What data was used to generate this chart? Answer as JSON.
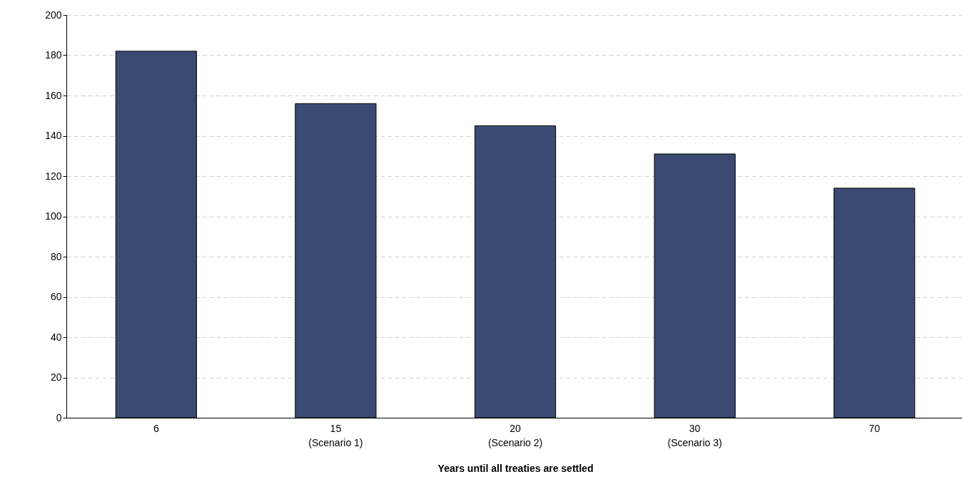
{
  "chart_data": {
    "type": "bar",
    "xlabel": "Years until all treaties are settled",
    "categories": [
      "6",
      "15\n(Scenario 1)",
      "20\n(Scenario 2)",
      "30\n(Scenario 3)",
      "70"
    ],
    "values": [
      182,
      156,
      145,
      131,
      114
    ],
    "color": "#3b4a72",
    "ylim": [
      0,
      200
    ],
    "yticks": [
      0,
      20,
      40,
      60,
      80,
      100,
      120,
      140,
      160,
      180,
      200
    ],
    "grid": "y"
  }
}
